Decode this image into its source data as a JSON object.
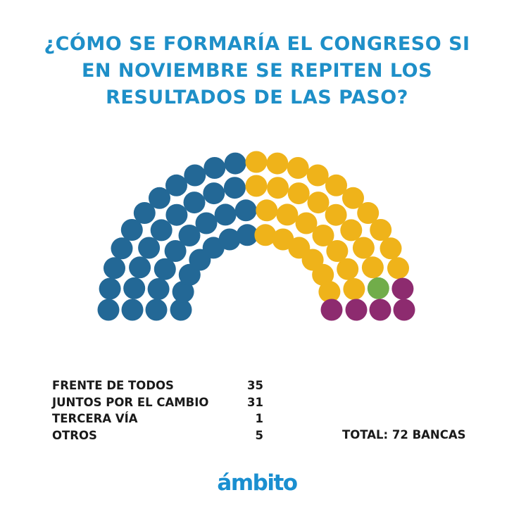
{
  "title": {
    "line1": "¿CÓMO SE FORMARÍA EL CONGRESO SI",
    "line2": "EN NOVIEMBRE SE REPITEN LOS",
    "line3": "RESULTADOS DE LAS PASO?"
  },
  "chart_data": {
    "type": "parliament",
    "series": [
      {
        "name": "FRENTE DE TODOS",
        "value": 35,
        "color": "#236896"
      },
      {
        "name": "JUNTOS POR EL CAMBIO",
        "value": 31,
        "color": "#efb31a"
      },
      {
        "name": "TERCERA VÍA",
        "value": 1,
        "color": "#71ad4a"
      },
      {
        "name": "OTROS",
        "value": 5,
        "color": "#8d2b6f"
      }
    ],
    "total_label": "TOTAL: 72 BANCAS"
  },
  "legend": {
    "rows": [
      {
        "label": "FRENTE DE TODOS",
        "value": "35"
      },
      {
        "label": "JUNTOS POR EL CAMBIO",
        "value": "31"
      },
      {
        "label": "TERCERA VÍA",
        "value": "1"
      },
      {
        "label": "OTROS",
        "value": "5"
      }
    ]
  },
  "logo": {
    "text": "ámbito",
    "color": "#1a8fd0"
  }
}
